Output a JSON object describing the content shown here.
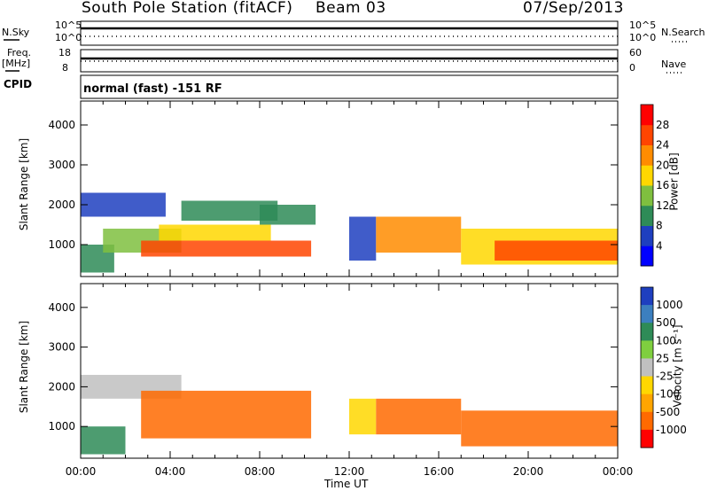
{
  "header": {
    "station": "South Pole Station (fitACF)",
    "beam": "Beam 03",
    "date": "07/Sep/2013"
  },
  "panels": {
    "nsky": {
      "label": "N.Sky",
      "left_ticks": [
        "10^5",
        "10^0"
      ],
      "right_ticks": [
        "10^5",
        "10^0"
      ],
      "right_label": "N.Search"
    },
    "freq": {
      "label": "Freq.",
      "unit": "[MHz]",
      "left_ticks": [
        "18",
        "8"
      ],
      "right_ticks": [
        "60",
        "0"
      ],
      "right_label": "Nave"
    },
    "cpid": {
      "label": "CPID",
      "text": "normal (fast) -151 RF"
    }
  },
  "chart_data": [
    {
      "type": "heatmap",
      "title": "",
      "xlabel": "Time UT",
      "ylabel": "Slant Range [km]",
      "x_ticks": [
        "00:00",
        "04:00",
        "08:00",
        "12:00",
        "16:00",
        "20:00",
        "00:00"
      ],
      "x_range_hours": [
        0,
        24
      ],
      "y_ticks": [
        1000,
        2000,
        3000,
        4000
      ],
      "ylim": [
        200,
        4600
      ],
      "colorbar": {
        "label": "Power [dB]",
        "ticks": [
          "4",
          "8",
          "12",
          "16",
          "20",
          "24",
          "28"
        ],
        "colors": [
          "#0000ff",
          "#1e3fbf",
          "#2e8b57",
          "#7fbf3f",
          "#ffd700",
          "#ff8c00",
          "#ff4500",
          "#ff0000"
        ]
      },
      "regions": [
        {
          "t_start": 0.0,
          "t_end": 1.5,
          "r_min": 300,
          "r_max": 1000,
          "value": 8
        },
        {
          "t_start": 0.0,
          "t_end": 3.8,
          "r_min": 1700,
          "r_max": 2300,
          "value": 4
        },
        {
          "t_start": 1.0,
          "t_end": 4.5,
          "r_min": 800,
          "r_max": 1400,
          "value": 14
        },
        {
          "t_start": 2.7,
          "t_end": 10.3,
          "r_min": 700,
          "r_max": 1100,
          "value": 26
        },
        {
          "t_start": 3.5,
          "t_end": 8.5,
          "r_min": 1100,
          "r_max": 1500,
          "value": 16
        },
        {
          "t_start": 4.5,
          "t_end": 8.8,
          "r_min": 1600,
          "r_max": 2100,
          "value": 8
        },
        {
          "t_start": 8.0,
          "t_end": 10.5,
          "r_min": 1500,
          "r_max": 2000,
          "value": 10
        },
        {
          "t_start": 12.0,
          "t_end": 13.2,
          "r_min": 600,
          "r_max": 1700,
          "value": 6
        },
        {
          "t_start": 13.2,
          "t_end": 17.0,
          "r_min": 800,
          "r_max": 1700,
          "value": 22
        },
        {
          "t_start": 17.0,
          "t_end": 24.0,
          "r_min": 500,
          "r_max": 1400,
          "value": 18
        },
        {
          "t_start": 18.5,
          "t_end": 24.0,
          "r_min": 600,
          "r_max": 1100,
          "value": 26
        }
      ]
    },
    {
      "type": "heatmap",
      "title": "",
      "xlabel": "Time UT",
      "ylabel": "Slant Range [km]",
      "x_ticks": [
        "00:00",
        "04:00",
        "08:00",
        "12:00",
        "16:00",
        "20:00",
        "00:00"
      ],
      "x_range_hours": [
        0,
        24
      ],
      "y_ticks": [
        1000,
        2000,
        3000,
        4000
      ],
      "ylim": [
        200,
        4600
      ],
      "colorbar": {
        "label": "Velocity [m s⁻¹]",
        "ticks": [
          "1000",
          "500",
          "100",
          "25",
          "-25",
          "-100",
          "-500",
          "-1000"
        ],
        "colors": [
          "#1e3fbf",
          "#3c7fbf",
          "#2e8b57",
          "#7fcf3f",
          "#c0c0c0",
          "#ffd700",
          "#ffa500",
          "#ff6a00",
          "#ff0000"
        ]
      },
      "regions": [
        {
          "t_start": 0.0,
          "t_end": 2.0,
          "r_min": 300,
          "r_max": 1000,
          "value": 60
        },
        {
          "t_start": 0.0,
          "t_end": 4.5,
          "r_min": 1700,
          "r_max": 2300,
          "value": 0
        },
        {
          "t_start": 2.7,
          "t_end": 10.3,
          "r_min": 700,
          "r_max": 1900,
          "value": -400
        },
        {
          "t_start": 12.0,
          "t_end": 13.2,
          "r_min": 800,
          "r_max": 1700,
          "value": -60
        },
        {
          "t_start": 13.2,
          "t_end": 17.0,
          "r_min": 800,
          "r_max": 1700,
          "value": -300
        },
        {
          "t_start": 17.0,
          "t_end": 24.0,
          "r_min": 500,
          "r_max": 1400,
          "value": -450
        }
      ]
    }
  ]
}
